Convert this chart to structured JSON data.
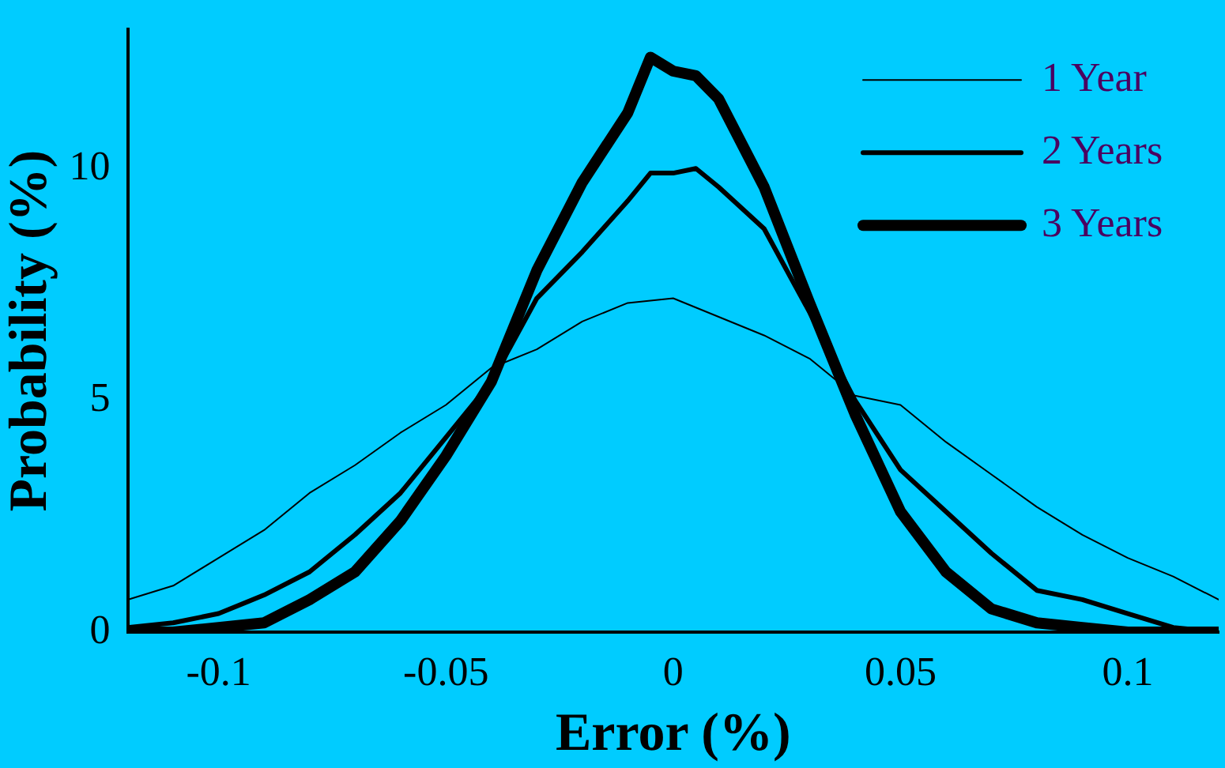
{
  "chart_data": {
    "type": "line",
    "xlabel": "Error (%)",
    "ylabel": "Probability (%)",
    "xlim": [
      -0.12,
      0.12
    ],
    "xticks": [
      -0.1,
      -0.05,
      0,
      0.05,
      0.1
    ],
    "ylim": [
      0,
      13
    ],
    "yticks": [
      0,
      5,
      10
    ],
    "grid": false,
    "legend": "top right",
    "marker": "none",
    "line_style": "solid",
    "series": [
      {
        "name": "1 Year",
        "color": "#000000",
        "x": [
          -0.12,
          -0.11,
          -0.1,
          -0.09,
          -0.08,
          -0.07,
          -0.06,
          -0.05,
          -0.04,
          -0.03,
          -0.02,
          -0.01,
          0,
          0.01,
          0.02,
          0.03,
          0.04,
          0.05,
          0.06,
          0.07,
          0.08,
          0.09,
          0.1,
          0.11,
          0.12
        ],
        "values": [
          0.7,
          1.0,
          1.6,
          2.2,
          3.0,
          3.6,
          4.3,
          4.9,
          5.7,
          6.1,
          6.7,
          7.1,
          7.2,
          6.8,
          6.4,
          5.9,
          5.1,
          4.9,
          4.1,
          3.4,
          2.7,
          2.1,
          1.6,
          1.2,
          0.7
        ]
      },
      {
        "name": "2 Years",
        "color": "#000000",
        "x": [
          -0.12,
          -0.11,
          -0.1,
          -0.09,
          -0.08,
          -0.07,
          -0.06,
          -0.05,
          -0.04,
          -0.03,
          -0.02,
          -0.01,
          -0.005,
          0,
          0.005,
          0.01,
          0.02,
          0.03,
          0.04,
          0.05,
          0.06,
          0.07,
          0.08,
          0.09,
          0.1,
          0.11,
          0.12
        ],
        "values": [
          0.1,
          0.2,
          0.4,
          0.8,
          1.3,
          2.1,
          3.0,
          4.2,
          5.4,
          7.2,
          8.2,
          9.3,
          9.9,
          9.9,
          10.0,
          9.6,
          8.7,
          6.9,
          5.0,
          3.5,
          2.6,
          1.7,
          0.9,
          0.7,
          0.4,
          0.1,
          0
        ]
      },
      {
        "name": "3 Years",
        "color": "#000000",
        "x": [
          -0.12,
          -0.11,
          -0.1,
          -0.09,
          -0.08,
          -0.07,
          -0.06,
          -0.05,
          -0.04,
          -0.03,
          -0.02,
          -0.01,
          -0.005,
          0,
          0.005,
          0.01,
          0.02,
          0.03,
          0.04,
          0.05,
          0.06,
          0.07,
          0.08,
          0.09,
          0.1,
          0.11,
          0.12
        ],
        "values": [
          0,
          0,
          0.1,
          0.2,
          0.7,
          1.3,
          2.4,
          3.8,
          5.4,
          7.8,
          9.7,
          11.2,
          12.4,
          12.1,
          12.0,
          11.5,
          9.6,
          7.1,
          4.7,
          2.6,
          1.3,
          0.5,
          0.2,
          0.1,
          0,
          0,
          0
        ]
      }
    ]
  }
}
